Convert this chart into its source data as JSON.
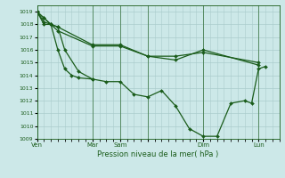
{
  "xlabel": "Pression niveau de la mer( hPa )",
  "bg_color": "#cce8e8",
  "grid_color": "#aacccc",
  "line_color": "#1a5c1a",
  "ylim": [
    1009,
    1019.5
  ],
  "yticks": [
    1009,
    1010,
    1011,
    1012,
    1013,
    1014,
    1015,
    1016,
    1017,
    1018,
    1019
  ],
  "xlim": [
    0,
    210
  ],
  "day_positions": [
    0,
    48,
    72,
    96,
    144,
    192
  ],
  "day_labels": [
    "Ven",
    "Mar",
    "Sam",
    "",
    "Dim",
    "Lun"
  ],
  "series": [
    [
      0,
      1019,
      6,
      1018.5,
      12,
      1018,
      18,
      1016,
      24,
      1014.5,
      30,
      1014,
      36,
      1013.8,
      48,
      1013.7
    ],
    [
      0,
      1019,
      6,
      1018.5,
      12,
      1018,
      18,
      1017.5,
      48,
      1016.3,
      72,
      1016.3,
      96,
      1015.5,
      120,
      1015.5,
      144,
      1015.8,
      192,
      1015.0
    ],
    [
      0,
      1019,
      6,
      1018.2,
      12,
      1018,
      18,
      1017.8,
      48,
      1016.4,
      72,
      1016.4,
      96,
      1015.5,
      120,
      1015.2,
      144,
      1016.0,
      192,
      1014.8
    ],
    [
      0,
      1019,
      6,
      1018,
      12,
      1018,
      18,
      1017.8,
      24,
      1016,
      36,
      1014.3,
      48,
      1013.7,
      60,
      1013.5,
      72,
      1013.5,
      84,
      1012.5,
      96,
      1012.3,
      108,
      1012.8,
      120,
      1011.6,
      132,
      1009.8,
      144,
      1009.2,
      156,
      1009.2,
      168,
      1011.8,
      180,
      1012.0,
      186,
      1011.8,
      192,
      1014.5,
      198,
      1014.7
    ]
  ]
}
